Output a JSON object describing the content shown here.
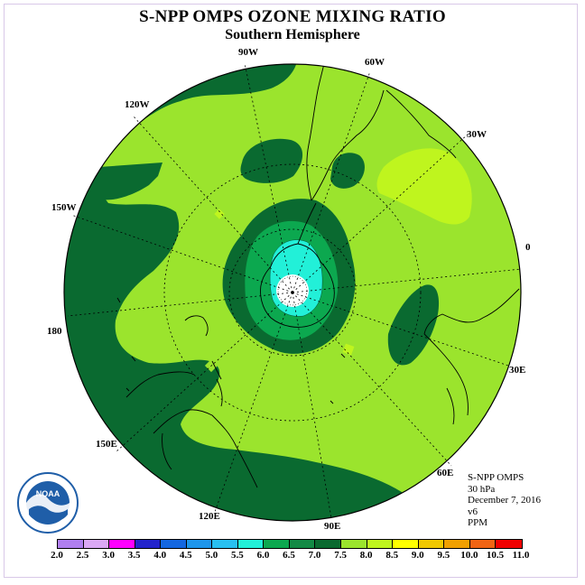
{
  "title": "S-NPP OMPS OZONE MIXING RATIO",
  "subtitle": "Southern Hemisphere",
  "longitude_labels": {
    "w90": "90W",
    "w60": "60W",
    "w120": "120W",
    "w30": "30W",
    "w150": "150W",
    "zero": "0",
    "w180": "180",
    "e30": "30E",
    "e150": "150E",
    "e60": "60E",
    "e120": "120E",
    "e90": "90E"
  },
  "info": {
    "line1": "S-NPP OMPS",
    "line2": "30 hPa",
    "line3": "December 7, 2016",
    "line4": "v6",
    "line5": "PPM"
  },
  "logo": {
    "text": "NOAA",
    "color": "#1f5ea8"
  },
  "colorbar": {
    "ticks": [
      "2.0",
      "2.5",
      "3.0",
      "3.5",
      "4.0",
      "4.5",
      "5.0",
      "5.5",
      "6.0",
      "6.5",
      "7.0",
      "7.5",
      "8.0",
      "8.5",
      "9.0",
      "9.5",
      "10.0",
      "10.5",
      "11.0"
    ],
    "colors": [
      "#b07fef",
      "#dba8f5",
      "#ff00ff",
      "#2323cc",
      "#1467e0",
      "#1e96eb",
      "#28c0f0",
      "#22f0d8",
      "#0ca84f",
      "#138a45",
      "#0a6a30",
      "#9be42d",
      "#bff51e",
      "#ffff00",
      "#f0c800",
      "#f0a000",
      "#f06414",
      "#f00000",
      "#7a4422"
    ]
  },
  "chart_data": {
    "type": "heatmap",
    "projection": "south polar stereographic",
    "field": "ozone mixing ratio",
    "units": "PPM",
    "pressure_level_hPa": 30,
    "date": "December 7, 2016",
    "contour_levels": [
      2.0,
      2.5,
      3.0,
      3.5,
      4.0,
      4.5,
      5.0,
      5.5,
      6.0,
      6.5,
      7.0,
      7.5,
      8.0,
      8.5,
      9.0,
      9.5,
      10.0,
      10.5,
      11.0
    ],
    "regions": [
      {
        "name": "polar minimum (centered over Antarctica)",
        "range": [
          5.5,
          6.0
        ]
      },
      {
        "name": "inner ring around pole",
        "range": [
          6.0,
          6.5
        ]
      },
      {
        "name": "outer ring around pole",
        "range": [
          6.5,
          7.0
        ]
      },
      {
        "name": "outer rim (150W–180–120E)",
        "range": [
          6.5,
          7.0
        ]
      },
      {
        "name": "mid-latitude belt",
        "range": [
          7.5,
          8.0
        ]
      },
      {
        "name": "patch near 30W",
        "range": [
          8.0,
          8.5
        ]
      }
    ]
  }
}
